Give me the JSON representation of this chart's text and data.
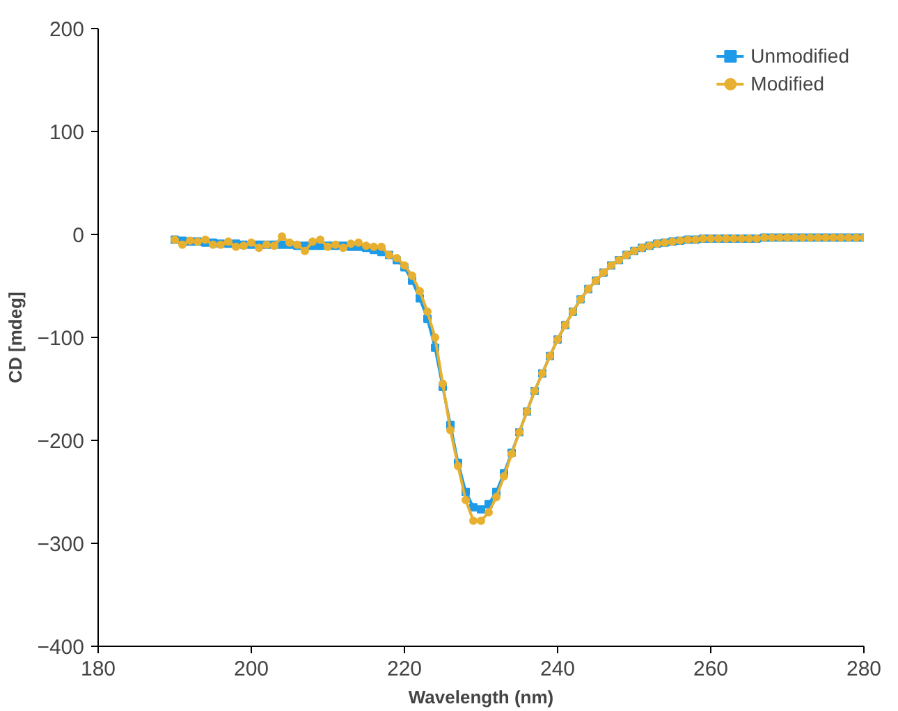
{
  "chart_data": {
    "type": "line",
    "xlabel": "Wavelength (nm)",
    "ylabel": "CD [mdeg]",
    "xlim": [
      180,
      280
    ],
    "ylim": [
      -400,
      200
    ],
    "xticks": [
      180,
      200,
      220,
      240,
      260,
      280
    ],
    "yticks": [
      -400,
      -300,
      -200,
      -100,
      0,
      100,
      200
    ],
    "grid": false,
    "legend": "top right",
    "x": [
      190,
      191,
      192,
      193,
      194,
      195,
      196,
      197,
      198,
      199,
      200,
      201,
      202,
      203,
      204,
      205,
      206,
      207,
      208,
      209,
      210,
      211,
      212,
      213,
      214,
      215,
      216,
      217,
      218,
      219,
      220,
      221,
      222,
      223,
      224,
      225,
      226,
      227,
      228,
      229,
      230,
      231,
      232,
      233,
      234,
      235,
      236,
      237,
      238,
      239,
      240,
      241,
      242,
      243,
      244,
      245,
      246,
      247,
      248,
      249,
      250,
      251,
      252,
      253,
      254,
      255,
      256,
      257,
      258,
      259,
      260,
      261,
      262,
      263,
      264,
      265,
      266,
      267,
      268,
      269,
      270,
      271,
      272,
      273,
      274,
      275,
      276,
      277,
      278,
      279,
      280
    ],
    "series": [
      {
        "name": "Unmodified",
        "color": "#1e9be8",
        "marker": "square",
        "values": [
          -5,
          -6,
          -7,
          -7,
          -8,
          -8,
          -9,
          -9,
          -9,
          -10,
          -10,
          -10,
          -10,
          -10,
          -10,
          -10,
          -11,
          -11,
          -11,
          -11,
          -11,
          -11,
          -11,
          -12,
          -12,
          -13,
          -15,
          -17,
          -20,
          -25,
          -32,
          -45,
          -62,
          -82,
          -110,
          -148,
          -185,
          -222,
          -250,
          -265,
          -267,
          -262,
          -250,
          -232,
          -212,
          -192,
          -172,
          -152,
          -135,
          -118,
          -102,
          -88,
          -75,
          -63,
          -53,
          -45,
          -37,
          -30,
          -25,
          -20,
          -16,
          -13,
          -11,
          -9,
          -8,
          -7,
          -6,
          -5,
          -5,
          -4,
          -4,
          -4,
          -4,
          -4,
          -4,
          -4,
          -4,
          -3,
          -3,
          -3,
          -3,
          -3,
          -3,
          -3,
          -3,
          -3,
          -3,
          -3,
          -3,
          -3,
          -3
        ]
      },
      {
        "name": "Modified",
        "color": "#e8b030",
        "marker": "circle",
        "values": [
          -5,
          -10,
          -6,
          -7,
          -5,
          -10,
          -10,
          -7,
          -12,
          -11,
          -8,
          -13,
          -10,
          -11,
          -2,
          -8,
          -10,
          -16,
          -7,
          -5,
          -12,
          -10,
          -13,
          -9,
          -8,
          -11,
          -12,
          -12,
          -20,
          -23,
          -30,
          -40,
          -55,
          -75,
          -100,
          -145,
          -190,
          -225,
          -258,
          -278,
          -278,
          -270,
          -255,
          -235,
          -213,
          -192,
          -172,
          -152,
          -135,
          -118,
          -102,
          -88,
          -75,
          -63,
          -53,
          -45,
          -37,
          -30,
          -25,
          -20,
          -16,
          -13,
          -11,
          -9,
          -8,
          -7,
          -6,
          -5,
          -5,
          -4,
          -4,
          -4,
          -4,
          -4,
          -4,
          -4,
          -4,
          -3,
          -3,
          -3,
          -3,
          -3,
          -3,
          -3,
          -3,
          -3,
          -3,
          -3,
          -3,
          -3,
          -3
        ]
      }
    ]
  }
}
